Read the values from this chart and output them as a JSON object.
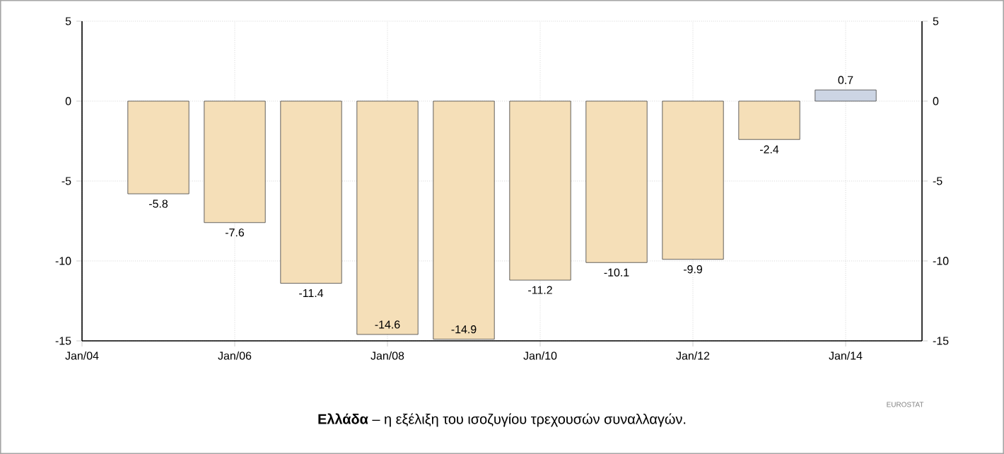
{
  "chart_data": {
    "type": "bar",
    "title": "**Ελλάδα** – η εξέλιξη του ισοζυγίου τρεχουσών συναλλαγών.",
    "annotations": [
      "EUROSTAT"
    ],
    "x": [
      "2005-01",
      "2006-01",
      "2007-01",
      "2008-01",
      "2009-01",
      "2010-01",
      "2011-01",
      "2012-01",
      "2013-01",
      "2014-01"
    ],
    "values": [
      -5.8,
      -7.6,
      -11.4,
      -14.6,
      -14.9,
      -11.2,
      -10.1,
      -9.9,
      -2.4,
      0.7
    ],
    "colors": [
      "#f5dfb8",
      "#f5dfb8",
      "#f5dfb8",
      "#f5dfb8",
      "#f5dfb8",
      "#f5dfb8",
      "#f5dfb8",
      "#f5dfb8",
      "#f5dfb8",
      "#ccd5e4"
    ],
    "data_labels": true,
    "xlim": [
      "2004-01",
      "2015-01"
    ],
    "xticks": [
      {
        "value": "2004-01",
        "label": "Jan/04"
      },
      {
        "value": "2006-01",
        "label": "Jan/06"
      },
      {
        "value": "2008-01",
        "label": "Jan/08"
      },
      {
        "value": "2010-01",
        "label": "Jan/10"
      },
      {
        "value": "2012-01",
        "label": "Jan/12"
      },
      {
        "value": "2014-01",
        "label": "Jan/14"
      }
    ],
    "ylim": [
      -15,
      5
    ],
    "yticks": [
      -15,
      -10,
      -5,
      0,
      5
    ],
    "y2lim": [
      -15,
      5
    ],
    "y2ticks": [
      -15,
      -10,
      -5,
      0,
      5
    ],
    "grid": true
  }
}
